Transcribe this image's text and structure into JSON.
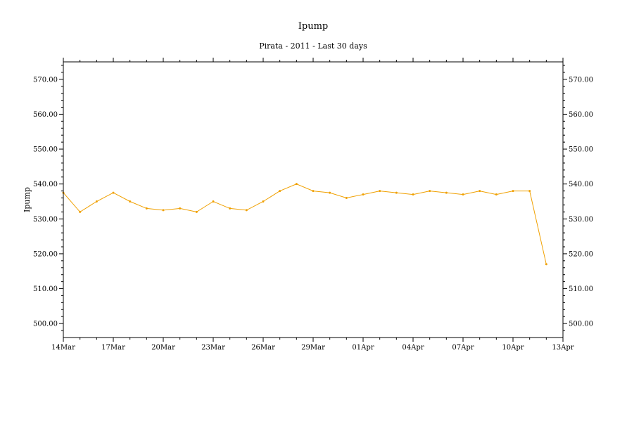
{
  "chart_data": {
    "type": "line",
    "title": "Ipump",
    "subtitle": "Pirata - 2011 - Last 30 days",
    "ylabel": "Ipump",
    "xlabel": "",
    "ylim": [
      496,
      575
    ],
    "y_ticks": [
      500,
      510,
      520,
      530,
      540,
      550,
      560,
      570
    ],
    "y_tick_labels": [
      "500.00",
      "510.00",
      "520.00",
      "530.00",
      "540.00",
      "550.00",
      "560.00",
      "570.00"
    ],
    "x_range": [
      "2011-03-14",
      "2011-04-13"
    ],
    "x_tick_labels": [
      "14Mar",
      "17Mar",
      "20Mar",
      "23Mar",
      "26Mar",
      "29Mar",
      "01Apr",
      "04Apr",
      "07Apr",
      "10Apr",
      "13Apr"
    ],
    "x_tick_dates": [
      "2011-03-14",
      "2011-03-17",
      "2011-03-20",
      "2011-03-23",
      "2011-03-26",
      "2011-03-29",
      "2011-04-01",
      "2011-04-04",
      "2011-04-07",
      "2011-04-10",
      "2011-04-13"
    ],
    "grid": false,
    "series_color": "#f0a000",
    "series": [
      {
        "x": [
          "2011-03-14",
          "2011-03-15",
          "2011-03-16",
          "2011-03-17",
          "2011-03-18",
          "2011-03-19",
          "2011-03-20",
          "2011-03-21",
          "2011-03-22",
          "2011-03-23",
          "2011-03-24",
          "2011-03-25",
          "2011-03-26",
          "2011-03-27",
          "2011-03-28",
          "2011-03-29",
          "2011-03-30",
          "2011-03-31",
          "2011-04-01",
          "2011-04-02",
          "2011-04-03",
          "2011-04-04",
          "2011-04-05",
          "2011-04-06",
          "2011-04-07",
          "2011-04-08",
          "2011-04-09",
          "2011-04-10",
          "2011-04-11",
          "2011-04-12"
        ],
        "values": [
          537.5,
          532,
          535,
          537.5,
          535,
          533,
          532.5,
          533,
          532,
          535,
          533,
          532.5,
          535,
          538,
          540,
          538,
          537.5,
          536,
          537,
          538,
          537.5,
          537,
          538,
          537.5,
          537,
          538,
          537,
          538,
          538,
          517
        ]
      }
    ]
  }
}
